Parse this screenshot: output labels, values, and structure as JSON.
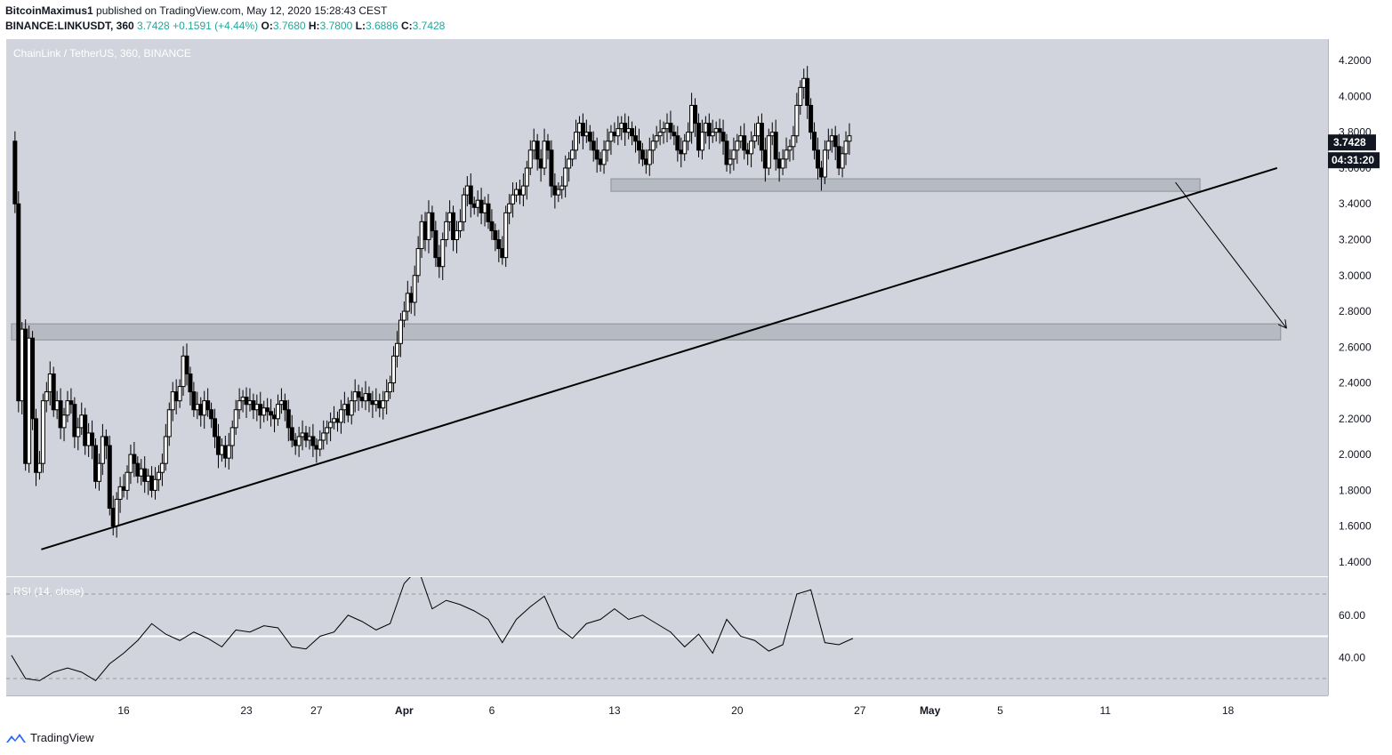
{
  "header": {
    "author": "BitcoinMaximus1",
    "published": "published on TradingView.com, May 12, 2020 15:28:43 CEST",
    "symbol_line": "BINANCE:LINKUSDT, 360",
    "last": "3.7428",
    "change": "+0.1591 (+4.44%)",
    "o_label": "O:",
    "o": "3.7680",
    "h_label": "H:",
    "h": "3.7800",
    "l_label": "L:",
    "l": "3.6886",
    "c_label": "C:",
    "c": "3.7428"
  },
  "pane_title": "ChainLink / TetherUS, 360, BINANCE",
  "rsi_title": "RSI (14, close)",
  "price_badge": "3.7428",
  "countdown_badge": "04:31:20",
  "brand": "TradingView",
  "colors": {
    "background": "#d1d4dc",
    "candle": "#000000",
    "zone": "#b2b5be",
    "badge": "#131722",
    "rsi_mid": "#ffffff"
  },
  "chart_data": [
    {
      "type": "candlestick",
      "y_ticks": [
        "4.2000",
        "4.0000",
        "3.8000",
        "3.6000",
        "3.4000",
        "3.2000",
        "3.0000",
        "2.8000",
        "2.6000",
        "2.4000",
        "2.2000",
        "2.0000",
        "1.8000",
        "1.6000",
        "1.4000"
      ],
      "ylim": [
        1.32,
        4.32
      ],
      "x_ticks": [
        {
          "label": "16",
          "day": 16
        },
        {
          "label": "23",
          "day": 23
        },
        {
          "label": "27",
          "day": 27
        },
        {
          "label": "Apr",
          "day": 32
        },
        {
          "label": "6",
          "day": 37
        },
        {
          "label": "13",
          "day": 44
        },
        {
          "label": "20",
          "day": 51
        },
        {
          "label": "27",
          "day": 58
        },
        {
          "label": "May",
          "day": 62
        },
        {
          "label": "5",
          "day": 66
        },
        {
          "label": "11",
          "day": 72
        },
        {
          "label": "18",
          "day": 79
        }
      ],
      "support_zones": [
        {
          "low": 3.47,
          "high": 3.54,
          "from": 43.8,
          "to": 77.4
        },
        {
          "low": 2.64,
          "high": 2.73,
          "from": 9.6,
          "to": 82.0
        }
      ],
      "trendline": {
        "x1": 11.3,
        "y1": 1.47,
        "x2": 81.8,
        "y2": 3.6
      },
      "projection_arrow": {
        "x1": 76.0,
        "y1": 3.52,
        "x2": 82.3,
        "y2": 2.71
      },
      "closes": [
        [
          9.6,
          3.75
        ],
        [
          9.8,
          3.4
        ],
        [
          10.0,
          2.3
        ],
        [
          10.2,
          2.7
        ],
        [
          10.4,
          1.95
        ],
        [
          10.6,
          2.65
        ],
        [
          10.8,
          2.2
        ],
        [
          11.0,
          1.9
        ],
        [
          11.2,
          1.95
        ],
        [
          11.4,
          2.3
        ],
        [
          11.6,
          2.35
        ],
        [
          11.8,
          2.45
        ],
        [
          12.0,
          2.25
        ],
        [
          12.2,
          2.3
        ],
        [
          12.4,
          2.15
        ],
        [
          12.6,
          2.22
        ],
        [
          12.8,
          2.3
        ],
        [
          13.0,
          2.28
        ],
        [
          13.2,
          2.1
        ],
        [
          13.4,
          2.15
        ],
        [
          13.6,
          2.22
        ],
        [
          13.8,
          2.05
        ],
        [
          14.0,
          2.12
        ],
        [
          14.2,
          2.05
        ],
        [
          14.4,
          1.85
        ],
        [
          14.6,
          1.95
        ],
        [
          14.8,
          2.1
        ],
        [
          15.0,
          2.05
        ],
        [
          15.2,
          1.7
        ],
        [
          15.4,
          1.6
        ],
        [
          15.6,
          1.75
        ],
        [
          15.8,
          1.82
        ],
        [
          16.0,
          1.8
        ],
        [
          16.2,
          1.9
        ],
        [
          16.4,
          2.0
        ],
        [
          16.6,
          1.95
        ],
        [
          16.8,
          1.88
        ],
        [
          17.0,
          1.92
        ],
        [
          17.2,
          1.85
        ],
        [
          17.4,
          1.88
        ],
        [
          17.6,
          1.8
        ],
        [
          17.8,
          1.86
        ],
        [
          18.0,
          1.9
        ],
        [
          18.2,
          1.95
        ],
        [
          18.4,
          2.1
        ],
        [
          18.6,
          2.25
        ],
        [
          18.8,
          2.35
        ],
        [
          19.0,
          2.3
        ],
        [
          19.2,
          2.38
        ],
        [
          19.4,
          2.55
        ],
        [
          19.6,
          2.45
        ],
        [
          19.8,
          2.35
        ],
        [
          20.0,
          2.25
        ],
        [
          20.2,
          2.28
        ],
        [
          20.4,
          2.22
        ],
        [
          20.6,
          2.3
        ],
        [
          20.8,
          2.25
        ],
        [
          21.0,
          2.2
        ],
        [
          21.2,
          2.1
        ],
        [
          21.4,
          2.0
        ],
        [
          21.6,
          2.05
        ],
        [
          21.8,
          1.98
        ],
        [
          22.0,
          2.05
        ],
        [
          22.2,
          2.15
        ],
        [
          22.4,
          2.25
        ],
        [
          22.6,
          2.3
        ],
        [
          22.8,
          2.32
        ],
        [
          23.0,
          2.28
        ],
        [
          23.2,
          2.3
        ],
        [
          23.4,
          2.25
        ],
        [
          23.6,
          2.28
        ],
        [
          23.8,
          2.22
        ],
        [
          24.0,
          2.26
        ],
        [
          24.2,
          2.24
        ],
        [
          24.4,
          2.22
        ],
        [
          24.6,
          2.2
        ],
        [
          24.8,
          2.28
        ],
        [
          25.0,
          2.3
        ],
        [
          25.2,
          2.25
        ],
        [
          25.4,
          2.15
        ],
        [
          25.6,
          2.08
        ],
        [
          25.8,
          2.05
        ],
        [
          26.0,
          2.1
        ],
        [
          26.2,
          2.12
        ],
        [
          26.4,
          2.08
        ],
        [
          26.6,
          2.1
        ],
        [
          26.8,
          2.05
        ],
        [
          27.0,
          2.03
        ],
        [
          27.2,
          2.08
        ],
        [
          27.4,
          2.12
        ],
        [
          27.6,
          2.15
        ],
        [
          27.8,
          2.18
        ],
        [
          28.0,
          2.2
        ],
        [
          28.2,
          2.18
        ],
        [
          28.4,
          2.25
        ],
        [
          28.6,
          2.28
        ],
        [
          28.8,
          2.22
        ],
        [
          29.0,
          2.3
        ],
        [
          29.2,
          2.35
        ],
        [
          29.4,
          2.32
        ],
        [
          29.6,
          2.3
        ],
        [
          29.8,
          2.34
        ],
        [
          30.0,
          2.3
        ],
        [
          30.2,
          2.28
        ],
        [
          30.4,
          2.3
        ],
        [
          30.6,
          2.26
        ],
        [
          30.8,
          2.3
        ],
        [
          31.0,
          2.35
        ],
        [
          31.2,
          2.4
        ],
        [
          31.4,
          2.55
        ],
        [
          31.6,
          2.62
        ],
        [
          31.8,
          2.75
        ],
        [
          32.0,
          2.8
        ],
        [
          32.2,
          2.9
        ],
        [
          32.4,
          2.85
        ],
        [
          32.6,
          3.0
        ],
        [
          32.8,
          3.15
        ],
        [
          33.0,
          3.3
        ],
        [
          33.2,
          3.2
        ],
        [
          33.4,
          3.35
        ],
        [
          33.6,
          3.25
        ],
        [
          33.8,
          3.1
        ],
        [
          34.0,
          3.05
        ],
        [
          34.2,
          3.2
        ],
        [
          34.4,
          3.3
        ],
        [
          34.6,
          3.35
        ],
        [
          34.8,
          3.2
        ],
        [
          35.0,
          3.25
        ],
        [
          35.2,
          3.3
        ],
        [
          35.4,
          3.45
        ],
        [
          35.6,
          3.5
        ],
        [
          35.8,
          3.4
        ],
        [
          36.0,
          3.38
        ],
        [
          36.2,
          3.42
        ],
        [
          36.4,
          3.35
        ],
        [
          36.6,
          3.4
        ],
        [
          36.8,
          3.3
        ],
        [
          37.0,
          3.25
        ],
        [
          37.2,
          3.2
        ],
        [
          37.4,
          3.15
        ],
        [
          37.6,
          3.1
        ],
        [
          37.8,
          3.35
        ],
        [
          38.0,
          3.4
        ],
        [
          38.2,
          3.45
        ],
        [
          38.4,
          3.48
        ],
        [
          38.6,
          3.45
        ],
        [
          38.8,
          3.5
        ],
        [
          39.0,
          3.6
        ],
        [
          39.2,
          3.7
        ],
        [
          39.4,
          3.75
        ],
        [
          39.6,
          3.65
        ],
        [
          39.8,
          3.6
        ],
        [
          40.0,
          3.75
        ],
        [
          40.2,
          3.7
        ],
        [
          40.4,
          3.5
        ],
        [
          40.6,
          3.45
        ],
        [
          40.8,
          3.48
        ],
        [
          41.0,
          3.5
        ],
        [
          41.2,
          3.6
        ],
        [
          41.4,
          3.65
        ],
        [
          41.6,
          3.7
        ],
        [
          41.8,
          3.8
        ],
        [
          42.0,
          3.85
        ],
        [
          42.2,
          3.78
        ],
        [
          42.4,
          3.8
        ],
        [
          42.6,
          3.75
        ],
        [
          42.8,
          3.7
        ],
        [
          43.0,
          3.65
        ],
        [
          43.2,
          3.62
        ],
        [
          43.4,
          3.7
        ],
        [
          43.6,
          3.75
        ],
        [
          43.8,
          3.8
        ],
        [
          44.0,
          3.78
        ],
        [
          44.2,
          3.82
        ],
        [
          44.4,
          3.85
        ],
        [
          44.6,
          3.8
        ],
        [
          44.8,
          3.82
        ],
        [
          45.0,
          3.78
        ],
        [
          45.2,
          3.75
        ],
        [
          45.4,
          3.7
        ],
        [
          45.6,
          3.65
        ],
        [
          45.8,
          3.62
        ],
        [
          46.0,
          3.7
        ],
        [
          46.2,
          3.75
        ],
        [
          46.4,
          3.78
        ],
        [
          46.6,
          3.8
        ],
        [
          46.8,
          3.82
        ],
        [
          47.0,
          3.85
        ],
        [
          47.2,
          3.8
        ],
        [
          47.4,
          3.78
        ],
        [
          47.6,
          3.7
        ],
        [
          47.8,
          3.68
        ],
        [
          48.0,
          3.75
        ],
        [
          48.2,
          3.8
        ],
        [
          48.4,
          3.95
        ],
        [
          48.6,
          3.85
        ],
        [
          48.8,
          3.7
        ],
        [
          49.0,
          3.8
        ],
        [
          49.2,
          3.85
        ],
        [
          49.4,
          3.78
        ],
        [
          49.6,
          3.8
        ],
        [
          49.8,
          3.82
        ],
        [
          50.0,
          3.8
        ],
        [
          50.2,
          3.75
        ],
        [
          50.4,
          3.62
        ],
        [
          50.6,
          3.65
        ],
        [
          50.8,
          3.7
        ],
        [
          51.0,
          3.75
        ],
        [
          51.2,
          3.78
        ],
        [
          51.4,
          3.7
        ],
        [
          51.6,
          3.68
        ],
        [
          51.8,
          3.75
        ],
        [
          52.0,
          3.78
        ],
        [
          52.2,
          3.85
        ],
        [
          52.4,
          3.7
        ],
        [
          52.6,
          3.6
        ],
        [
          52.8,
          3.78
        ],
        [
          53.0,
          3.8
        ],
        [
          53.2,
          3.65
        ],
        [
          53.4,
          3.6
        ],
        [
          53.6,
          3.65
        ],
        [
          53.8,
          3.7
        ],
        [
          54.0,
          3.72
        ],
        [
          54.2,
          3.78
        ],
        [
          54.4,
          3.95
        ],
        [
          54.6,
          4.05
        ],
        [
          54.8,
          4.1
        ],
        [
          55.0,
          3.95
        ],
        [
          55.2,
          3.8
        ],
        [
          55.4,
          3.7
        ],
        [
          55.6,
          3.6
        ],
        [
          55.8,
          3.55
        ],
        [
          56.0,
          3.7
        ],
        [
          56.2,
          3.75
        ],
        [
          56.4,
          3.78
        ],
        [
          56.6,
          3.72
        ],
        [
          56.8,
          3.6
        ],
        [
          57.0,
          3.68
        ],
        [
          57.2,
          3.75
        ],
        [
          57.4,
          3.78
        ]
      ],
      "annotation_note": ""
    },
    {
      "type": "line",
      "name": "RSI (14, close)",
      "y_ticks": [
        "60.00",
        "40.00"
      ],
      "ylim": [
        22,
        78
      ],
      "levels": [
        70,
        50,
        30
      ],
      "x": [
        9.6,
        10.4,
        11.2,
        12.0,
        12.8,
        13.6,
        14.4,
        15.2,
        16.0,
        16.8,
        17.6,
        18.4,
        19.2,
        20.0,
        20.8,
        21.6,
        22.4,
        23.2,
        24.0,
        24.8,
        25.6,
        26.4,
        27.2,
        28.0,
        28.8,
        29.6,
        30.4,
        31.2,
        32.0,
        32.8,
        33.6,
        34.4,
        35.2,
        36.0,
        36.8,
        37.6,
        38.4,
        39.2,
        40.0,
        40.8,
        41.6,
        42.4,
        43.2,
        44.0,
        44.8,
        45.6,
        46.4,
        47.2,
        48.0,
        48.8,
        49.6,
        50.4,
        51.2,
        52.0,
        52.8,
        53.6,
        54.4,
        55.2,
        56.0,
        56.8,
        57.6
      ],
      "values": [
        41,
        30,
        29,
        33,
        35,
        33,
        29,
        37,
        42,
        48,
        56,
        51,
        48,
        52,
        49,
        45,
        53,
        52,
        55,
        54,
        45,
        44,
        50,
        52,
        60,
        57,
        53,
        56,
        75,
        82,
        63,
        67,
        65,
        62,
        58,
        47,
        58,
        64,
        69,
        54,
        49,
        56,
        58,
        63,
        58,
        60,
        56,
        52,
        45,
        51,
        42,
        58,
        50,
        48,
        43,
        46,
        70,
        72,
        47,
        46,
        49
      ]
    }
  ]
}
